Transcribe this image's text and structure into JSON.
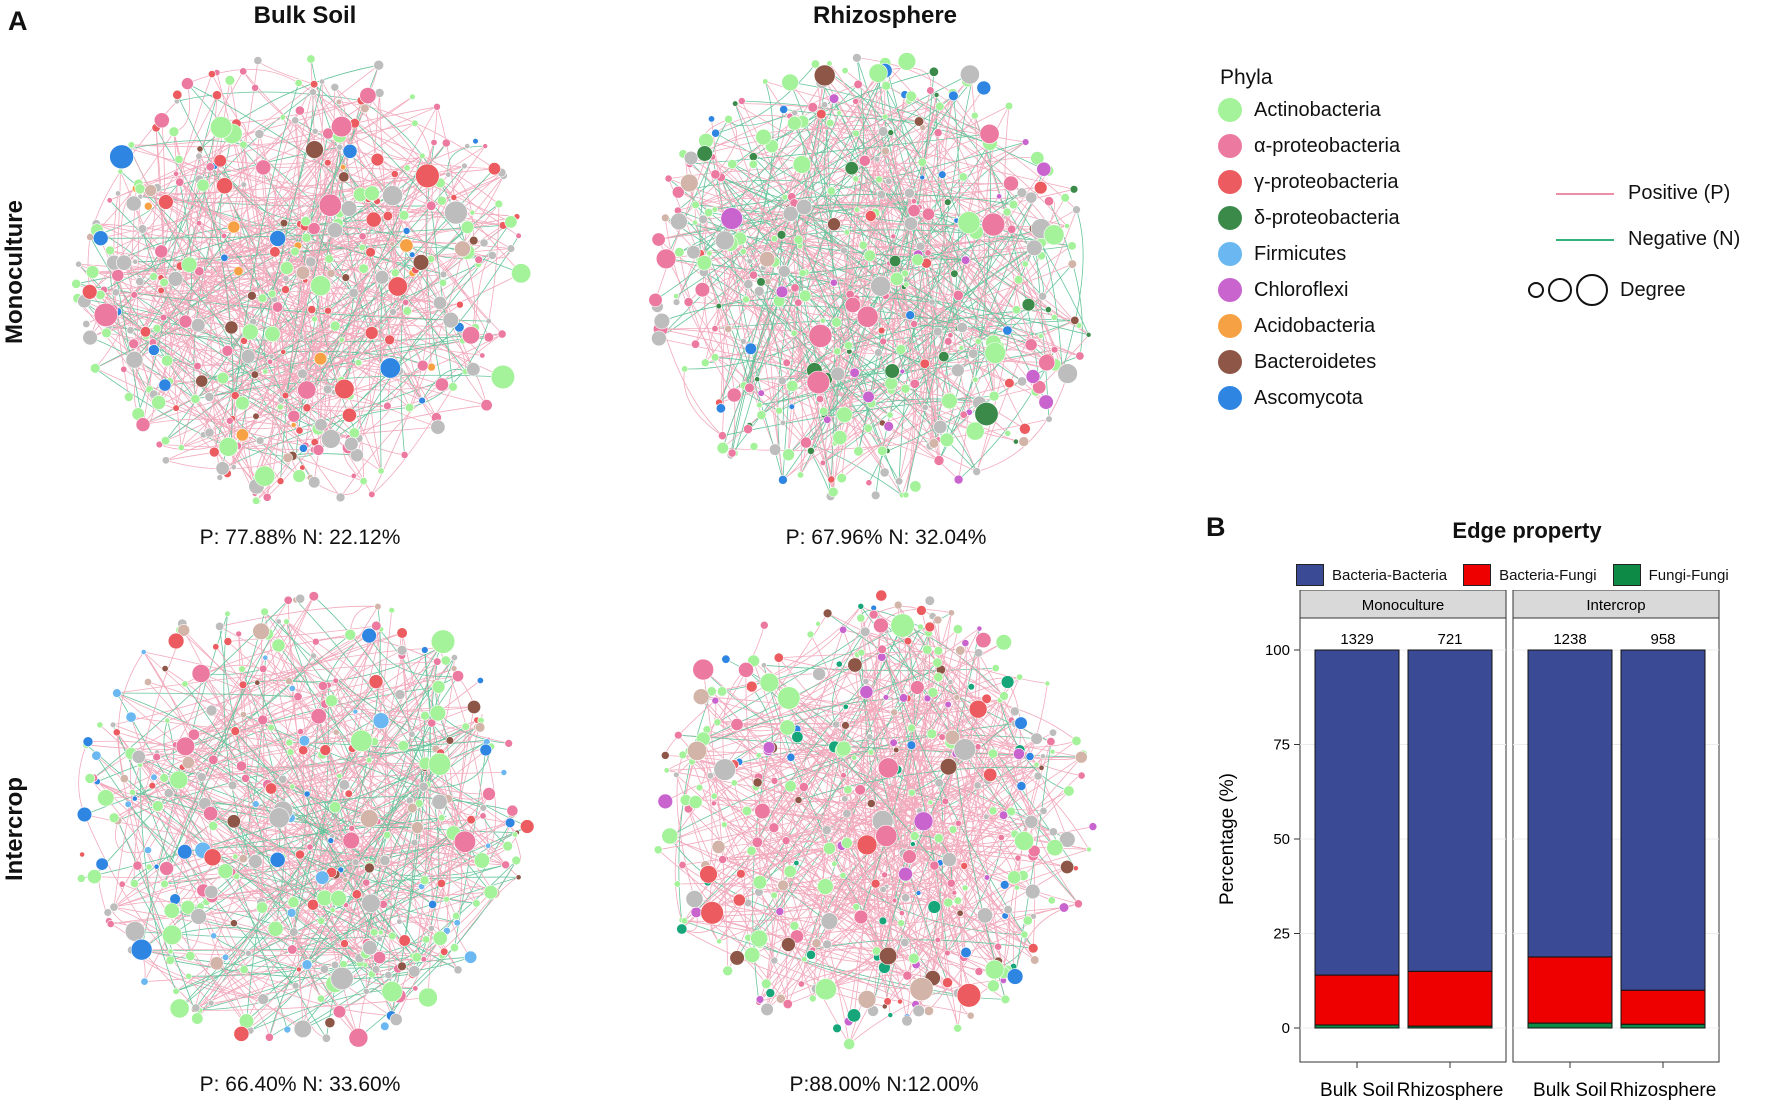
{
  "panel_a_label": "A",
  "panel_b_label": "B",
  "columns": [
    "Bulk Soil",
    "Rhizosphere"
  ],
  "rows": [
    "Monoculture",
    "Intercrop"
  ],
  "networks": [
    {
      "id": "mono-bulk",
      "pn": "P: 77.88%  N: 22.12%",
      "positive": 77.88,
      "negative": 22.12
    },
    {
      "id": "mono-rhizo",
      "pn": "P: 67.96%  N: 32.04%",
      "positive": 67.96,
      "negative": 32.04
    },
    {
      "id": "inter-bulk",
      "pn": "P: 66.40%  N: 33.60%",
      "positive": 66.4,
      "negative": 33.6
    },
    {
      "id": "inter-rhizo",
      "pn": "P:88.00%  N:12.00%",
      "positive": 88.0,
      "negative": 12.0
    }
  ],
  "legend": {
    "title": "Phyla",
    "phyla": [
      {
        "name": "Actinobacteria",
        "color": "#a4f29a"
      },
      {
        "name": "α-proteobacteria",
        "color": "#ec7aa0"
      },
      {
        "name": "γ-proteobacteria",
        "color": "#ec5b5f"
      },
      {
        "name": "δ-proteobacteria",
        "color": "#3b8a4a"
      },
      {
        "name": "Firmicutes",
        "color": "#6ab7f2"
      },
      {
        "name": "Chloroflexi",
        "color": "#c964cf"
      },
      {
        "name": "Acidobacteria",
        "color": "#f7a145"
      },
      {
        "name": "Bacteroidetes",
        "color": "#8e5646"
      },
      {
        "name": "Ascomycota",
        "color": "#2f86e2"
      }
    ],
    "positive_label": "Positive (P)",
    "negative_label": "Negative (N)",
    "positive_color": "#ee8ea6",
    "negative_color": "#34b27a",
    "degree_label": "Degree"
  },
  "chart_data": {
    "type": "bar",
    "stacked": true,
    "title": "Edge property",
    "ylabel": "Percentage (%)",
    "xlabel": "",
    "ylim": [
      0,
      100
    ],
    "yticks": [
      0,
      25,
      50,
      75,
      100
    ],
    "facets": [
      "Monoculture",
      "Intercrop"
    ],
    "categories": [
      "Bulk Soil",
      "Rhizosphere"
    ],
    "legend": [
      {
        "name": "Bacteria-Bacteria",
        "color": "#3b4a94"
      },
      {
        "name": "Bacteria-Fungi",
        "color": "#ee0000"
      },
      {
        "name": "Fungi-Fungi",
        "color": "#0c8a46"
      }
    ],
    "bars": [
      {
        "facet": "Monoculture",
        "category": "Bulk Soil",
        "total": "1329",
        "Fungi-Fungi": 0.8,
        "Bacteria-Fungi": 13.2,
        "Bacteria-Bacteria": 86.0
      },
      {
        "facet": "Monoculture",
        "category": "Rhizosphere",
        "total": "721",
        "Fungi-Fungi": 0.5,
        "Bacteria-Fungi": 14.5,
        "Bacteria-Bacteria": 85.0
      },
      {
        "facet": "Intercrop",
        "category": "Bulk Soil",
        "total": "1238",
        "Fungi-Fungi": 1.3,
        "Bacteria-Fungi": 17.5,
        "Bacteria-Bacteria": 81.2
      },
      {
        "facet": "Intercrop",
        "category": "Rhizosphere",
        "total": "958",
        "Fungi-Fungi": 1.0,
        "Bacteria-Fungi": 9.0,
        "Bacteria-Bacteria": 90.0
      }
    ]
  }
}
